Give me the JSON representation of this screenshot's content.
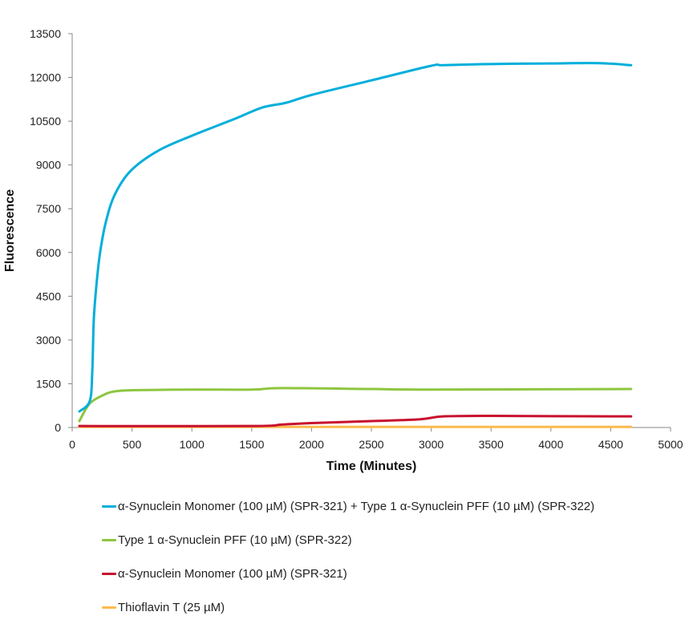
{
  "chart_data": {
    "type": "line",
    "title": "",
    "xlabel": "Time (Minutes)",
    "ylabel": "Fluorescence",
    "xlim": [
      0,
      5000
    ],
    "ylim": [
      0,
      13500
    ],
    "xticks": [
      0,
      500,
      1000,
      1500,
      2000,
      2500,
      3000,
      3500,
      4000,
      4500,
      5000
    ],
    "yticks": [
      0,
      1500,
      3000,
      4500,
      6000,
      7500,
      9000,
      10500,
      12000,
      13500
    ],
    "grid": false,
    "legend_placement": "bottom",
    "series": [
      {
        "name": "α-Synuclein Monomer (100 µM) (SPR-321) + Type 1 α-Synuclein PFF (10 µM) (SPR-322)",
        "color": "#00AEDB",
        "x": [
          60,
          147,
          168,
          181,
          208,
          235,
          281,
          355,
          489,
          717,
          1005,
          1361,
          1588,
          1790,
          2000,
          2500,
          3000,
          3100,
          3500,
          4000,
          4400,
          4670
        ],
        "y": [
          550,
          907,
          1925,
          3740,
          5115,
          6050,
          7040,
          7975,
          8800,
          9485,
          10010,
          10585,
          10970,
          11135,
          11400,
          11900,
          12400,
          12420,
          12460,
          12480,
          12490,
          12420
        ]
      },
      {
        "name": "Type 1 α-Synuclein PFF (10 µM) (SPR-322)",
        "color": "#8DC63F",
        "x": [
          60,
          147,
          268,
          355,
          500,
          1000,
          1500,
          1750,
          2500,
          3000,
          4670
        ],
        "y": [
          220,
          825,
          1127,
          1237,
          1280,
          1300,
          1300,
          1350,
          1320,
          1300,
          1320
        ]
      },
      {
        "name": "α-Synuclein Monomer (100 µM) (SPR-321)",
        "color": "#C8102E",
        "x": [
          60,
          1500,
          1750,
          2000,
          2500,
          2900,
          3100,
          3500,
          4000,
          4670
        ],
        "y": [
          50,
          50,
          100,
          150,
          220,
          280,
          380,
          400,
          390,
          380
        ]
      },
      {
        "name": "Thioflavin T (25 µM)",
        "color": "#FDB94D",
        "x": [
          60,
          4670
        ],
        "y": [
          20,
          20
        ]
      }
    ]
  }
}
